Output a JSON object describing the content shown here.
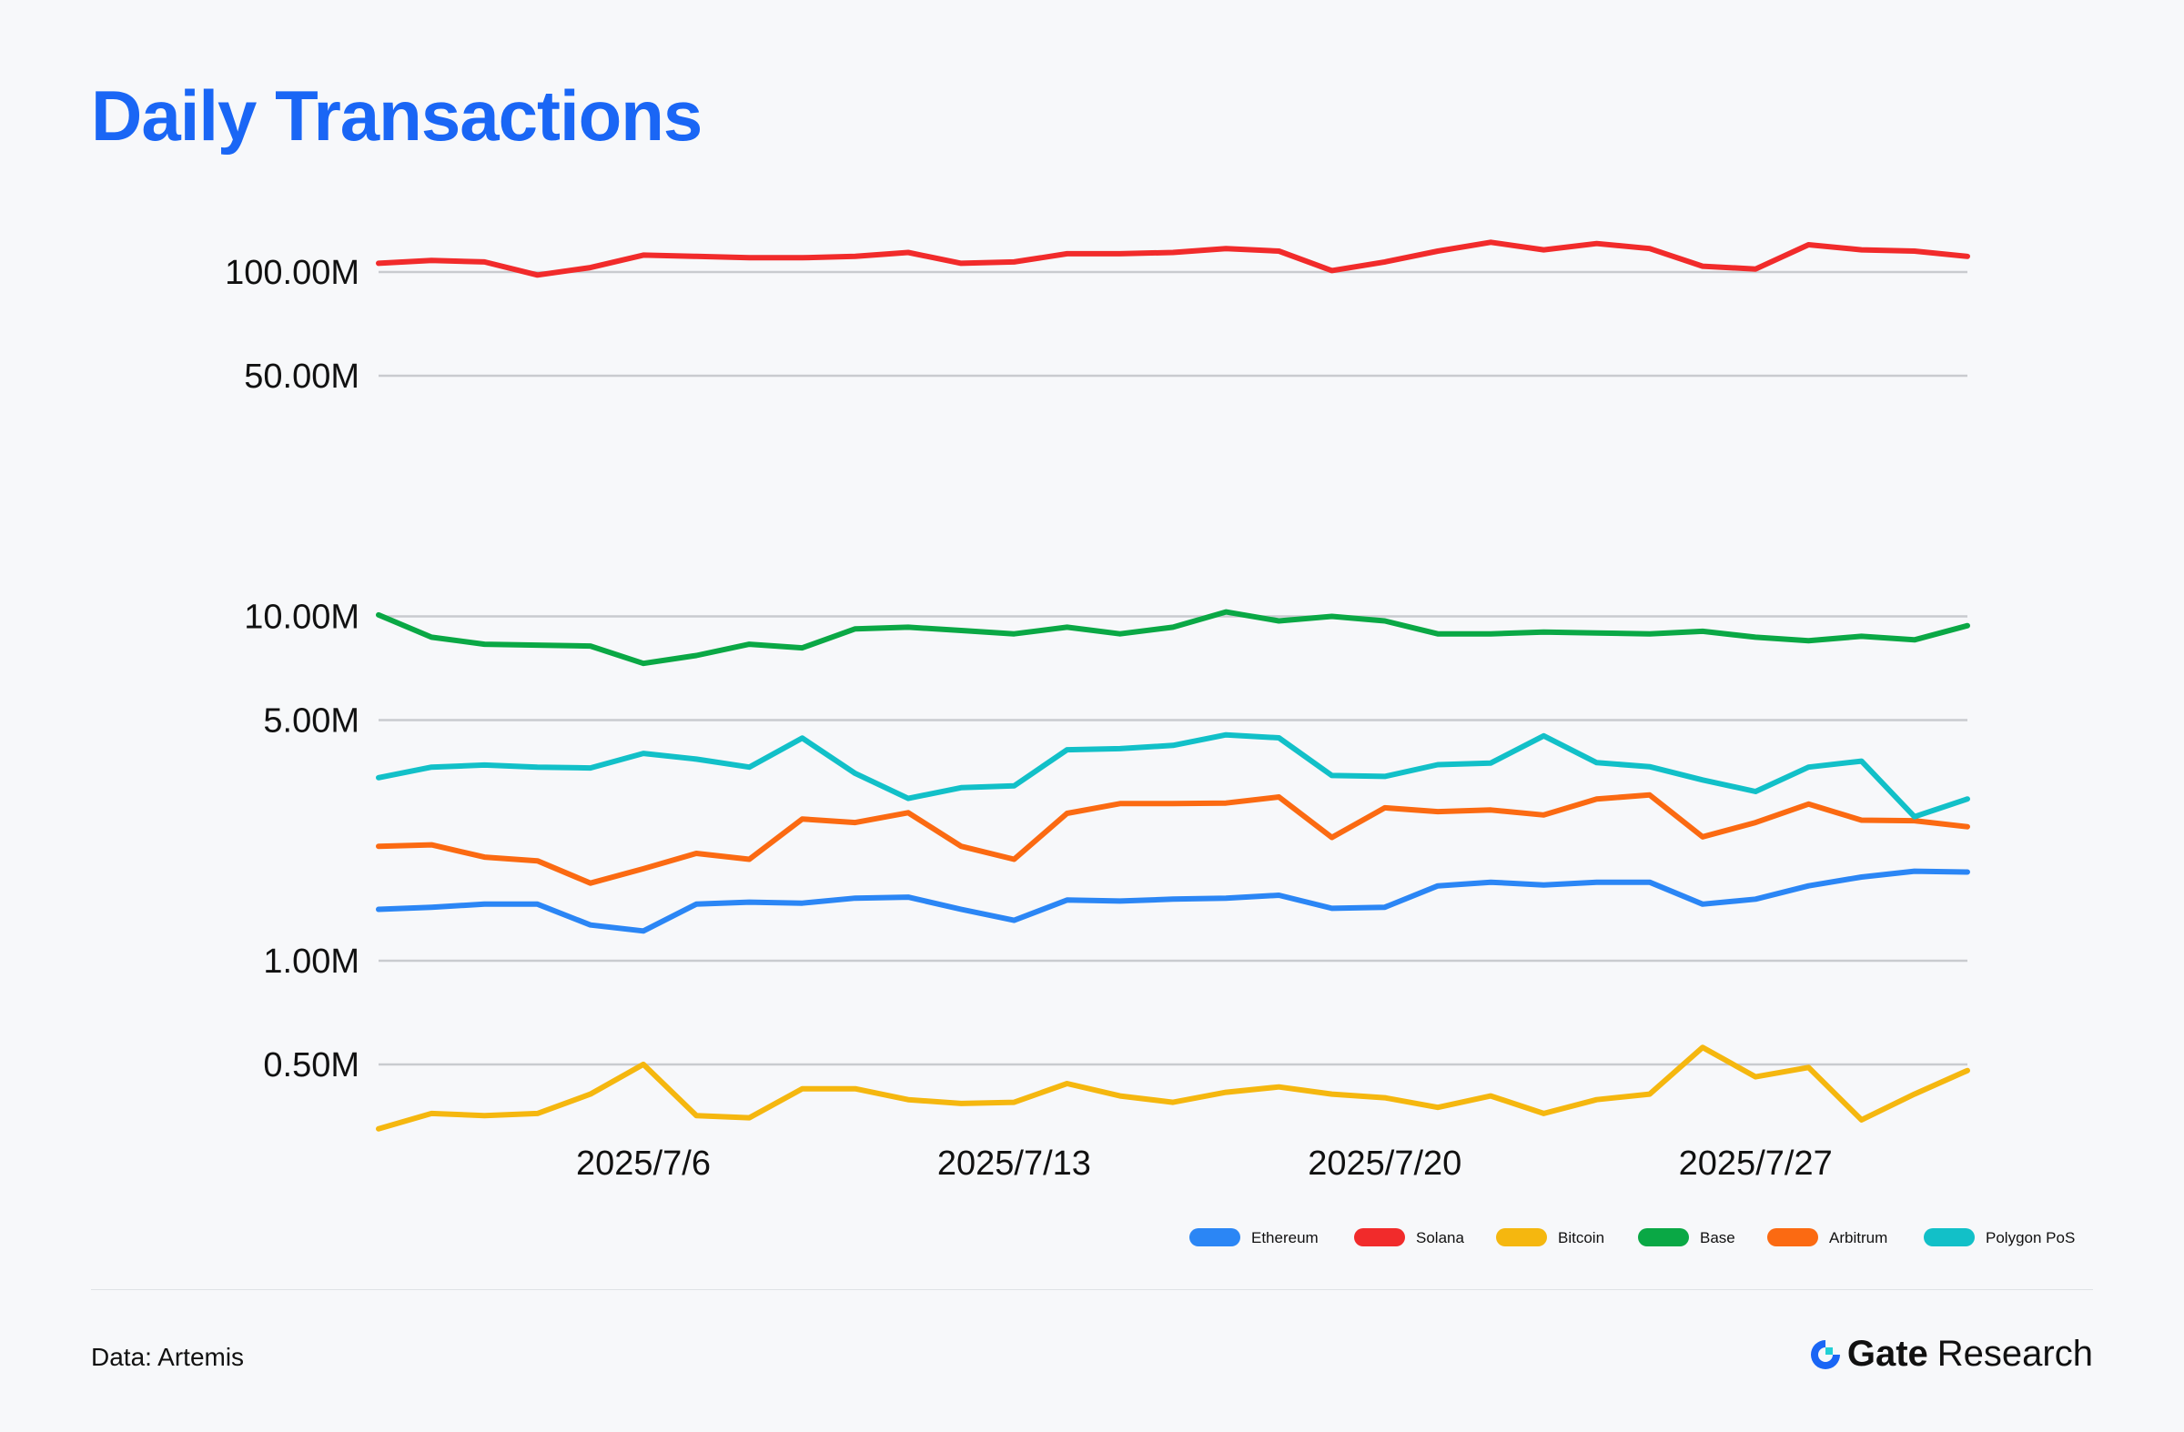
{
  "title": "Daily Transactions",
  "source": "Data: Artemis",
  "brand": {
    "name": "Gate",
    "sub": "Research",
    "logo_icon": "gate-logo-icon"
  },
  "chart_data": {
    "type": "line",
    "title": "Daily Transactions",
    "xlabel": "",
    "ylabel": "",
    "y_scale": "log",
    "ylim": [
      300000,
      140000000
    ],
    "grid": true,
    "legend_position": "bottom-right",
    "x": [
      "2025/7/1",
      "2025/7/2",
      "2025/7/3",
      "2025/7/4",
      "2025/7/5",
      "2025/7/6",
      "2025/7/7",
      "2025/7/8",
      "2025/7/9",
      "2025/7/10",
      "2025/7/11",
      "2025/7/12",
      "2025/7/13",
      "2025/7/14",
      "2025/7/15",
      "2025/7/16",
      "2025/7/17",
      "2025/7/18",
      "2025/7/19",
      "2025/7/20",
      "2025/7/21",
      "2025/7/22",
      "2025/7/23",
      "2025/7/24",
      "2025/7/25",
      "2025/7/26",
      "2025/7/27",
      "2025/7/28",
      "2025/7/29",
      "2025/7/30",
      "2025/7/31"
    ],
    "x_ticks": [
      "2025/7/6",
      "2025/7/13",
      "2025/7/20",
      "2025/7/27"
    ],
    "y_ticks": [
      {
        "value": 100000000,
        "label": "100.00M"
      },
      {
        "value": 50000000,
        "label": "50.00M"
      },
      {
        "value": 10000000,
        "label": "10.00M"
      },
      {
        "value": 5000000,
        "label": "5.00M"
      },
      {
        "value": 1000000,
        "label": "1.00M"
      },
      {
        "value": 500000,
        "label": "0.50M"
      }
    ],
    "series": [
      {
        "name": "Ethereum",
        "color": "#2b86f5",
        "values": [
          1410000,
          1430000,
          1460000,
          1460000,
          1270000,
          1220000,
          1460000,
          1480000,
          1470000,
          1520000,
          1530000,
          1410000,
          1310000,
          1500000,
          1490000,
          1510000,
          1520000,
          1550000,
          1420000,
          1430000,
          1650000,
          1690000,
          1660000,
          1690000,
          1690000,
          1460000,
          1510000,
          1650000,
          1750000,
          1820000,
          1810000
        ]
      },
      {
        "name": "Solana",
        "color": "#f12b2b",
        "values": [
          106000000,
          108000000,
          107000000,
          98000000,
          103000000,
          112000000,
          111000000,
          110000000,
          110000000,
          111000000,
          114000000,
          106000000,
          107000000,
          113000000,
          113000000,
          114000000,
          117000000,
          115000000,
          101000000,
          107000000,
          115000000,
          122000000,
          116000000,
          121000000,
          117000000,
          104000000,
          102000000,
          120000000,
          116000000,
          115000000,
          111000000
        ]
      },
      {
        "name": "Bitcoin",
        "color": "#f5b70f",
        "values": [
          325000,
          360000,
          355000,
          360000,
          410000,
          500000,
          355000,
          350000,
          425000,
          425000,
          395000,
          385000,
          388000,
          440000,
          405000,
          388000,
          415000,
          430000,
          410000,
          400000,
          375000,
          405000,
          360000,
          395000,
          410000,
          560000,
          460000,
          490000,
          345000,
          410000,
          480000
        ]
      },
      {
        "name": "Base",
        "color": "#0aa845",
        "values": [
          10100000,
          8700000,
          8300000,
          8250000,
          8200000,
          7300000,
          7700000,
          8300000,
          8100000,
          9200000,
          9300000,
          9100000,
          8900000,
          9300000,
          8900000,
          9300000,
          10300000,
          9700000,
          10000000,
          9700000,
          8900000,
          8900000,
          9000000,
          8950000,
          8900000,
          9050000,
          8700000,
          8500000,
          8750000,
          8550000,
          9400000
        ]
      },
      {
        "name": "Arbitrum",
        "color": "#fb6a12",
        "values": [
          2150000,
          2170000,
          2000000,
          1950000,
          1680000,
          1850000,
          2050000,
          1970000,
          2580000,
          2520000,
          2690000,
          2150000,
          1970000,
          2680000,
          2860000,
          2860000,
          2870000,
          2990000,
          2280000,
          2780000,
          2710000,
          2740000,
          2650000,
          2950000,
          3030000,
          2290000,
          2520000,
          2850000,
          2560000,
          2550000,
          2450000
        ]
      },
      {
        "name": "Polygon PoS",
        "color": "#12c0c8",
        "values": [
          3400000,
          3650000,
          3700000,
          3650000,
          3630000,
          4000000,
          3850000,
          3650000,
          4430000,
          3500000,
          2960000,
          3180000,
          3220000,
          4100000,
          4130000,
          4220000,
          4530000,
          4440000,
          3450000,
          3430000,
          3710000,
          3750000,
          4500000,
          3760000,
          3660000,
          3350000,
          3100000,
          3650000,
          3800000,
          2620000,
          2950000
        ]
      }
    ]
  }
}
